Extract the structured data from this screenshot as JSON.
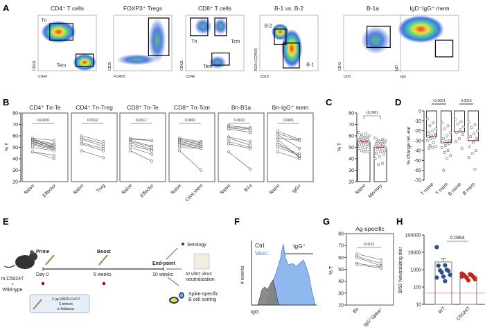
{
  "panels": {
    "A": "A",
    "B": "B",
    "C": "C",
    "D": "D",
    "E": "E",
    "F": "F",
    "G": "G",
    "H": "H"
  },
  "flow_plots": [
    {
      "title": "CD4⁺ T cells",
      "x": "CD44",
      "y": "CD62L",
      "gates": [
        "Tn",
        "Tem"
      ]
    },
    {
      "title": "FOXP3⁺ Tregs",
      "x": "FOXP3",
      "y": "CD25",
      "gates": []
    },
    {
      "title": "CD8⁺ T cells",
      "x": "CD44",
      "y": "CD62L",
      "gates": [
        "Tn",
        "Tcm",
        "Tem"
      ]
    },
    {
      "title": "B-1 vs. B-2",
      "x": "CD19",
      "y": "B220 (CD45R)",
      "gates": [
        "B-2",
        "B-1"
      ]
    },
    {
      "title": "B-1a",
      "x": "CD5",
      "y": "CD43",
      "gates": []
    },
    {
      "title": "IgD⁻IgG⁺ mem",
      "x": "IgG",
      "y": "IgD",
      "gates": []
    }
  ],
  "chart_data": [
    {
      "panel": "B",
      "type": "line",
      "ylabel": "% T",
      "ylim": [
        20,
        80
      ],
      "yticks": [
        20,
        30,
        40,
        50,
        60,
        70,
        80
      ],
      "subplots": [
        {
          "title": "CD4⁺ Tn-Te",
          "categories": [
            "Naive",
            "Effector"
          ],
          "p": "<0.0001",
          "pairs": [
            [
              58,
              56
            ],
            [
              57,
              53
            ],
            [
              57,
              50
            ],
            [
              56,
              52
            ],
            [
              55,
              51
            ],
            [
              55,
              49
            ],
            [
              54,
              50
            ],
            [
              53,
              49
            ],
            [
              52,
              48
            ],
            [
              50,
              47
            ],
            [
              46,
              43
            ],
            [
              46,
              40
            ]
          ]
        },
        {
          "title": "CD4⁺ Tn-Treg",
          "categories": [
            "Naive",
            "Treg"
          ],
          "p": "0.0312",
          "pairs": [
            [
              60,
              55
            ],
            [
              58,
              53
            ],
            [
              57,
              51
            ],
            [
              54,
              49
            ],
            [
              53,
              47
            ],
            [
              47,
              41
            ]
          ]
        },
        {
          "title": "CD8⁺ Tn-Te",
          "categories": [
            "Naive",
            "Effector"
          ],
          "p": "0.0012",
          "pairs": [
            [
              58,
              56
            ],
            [
              57,
              56
            ],
            [
              56,
              51
            ],
            [
              55,
              50
            ],
            [
              54,
              48
            ],
            [
              52,
              47
            ],
            [
              50,
              44
            ],
            [
              47,
              38
            ]
          ]
        },
        {
          "title": "CD8⁺ Tn-Tcm",
          "categories": [
            "Naive",
            "Cent mem"
          ],
          "p": "0.0001",
          "pairs": [
            [
              58,
              55
            ],
            [
              57,
              54
            ],
            [
              56,
              53
            ],
            [
              55,
              52
            ],
            [
              54,
              51
            ],
            [
              53,
              50
            ],
            [
              52,
              49
            ],
            [
              50,
              49
            ],
            [
              47,
              30
            ]
          ]
        },
        {
          "title": "Bn-B1a",
          "categories": [
            "Naive",
            "B1a"
          ],
          "p": "0.0010",
          "pairs": [
            [
              69,
              67
            ],
            [
              68,
              66
            ],
            [
              67,
              65
            ],
            [
              66,
              63
            ],
            [
              59,
              55
            ],
            [
              58,
              52
            ],
            [
              55,
              50
            ],
            [
              53,
              49
            ],
            [
              46,
              31
            ]
          ]
        },
        {
          "title": "Bn-IgG⁺ mem",
          "categories": [
            "Naive",
            "IgG+"
          ],
          "p": "0.0001",
          "pairs": [
            [
              64,
              57
            ],
            [
              62,
              56
            ],
            [
              61,
              49
            ],
            [
              58,
              56
            ],
            [
              57,
              41
            ],
            [
              54,
              42
            ],
            [
              52,
              44
            ],
            [
              50,
              43
            ],
            [
              46,
              40
            ]
          ]
        }
      ]
    },
    {
      "panel": "C",
      "type": "bar",
      "ylabel": "% T",
      "ylim": [
        20,
        80
      ],
      "yticks": [
        20,
        30,
        40,
        50,
        60,
        70,
        80
      ],
      "categories": [
        "Naive",
        "Memory"
      ],
      "means": [
        55,
        50
      ],
      "p": "<0.0001",
      "points": [
        [
          63,
          62,
          61,
          60,
          59,
          59,
          58,
          58,
          57,
          57,
          56,
          56,
          55,
          55,
          55,
          54,
          54,
          53,
          53,
          52,
          51,
          50,
          49,
          48,
          47,
          46,
          46
        ],
        [
          58,
          57,
          56,
          56,
          55,
          55,
          54,
          53,
          53,
          52,
          52,
          51,
          51,
          50,
          50,
          49,
          48,
          47,
          46,
          45,
          44,
          42,
          40,
          36,
          35
        ]
      ]
    },
    {
      "panel": "D",
      "type": "bar",
      "ylabel": "% change rel. ear",
      "ylim": [
        -70,
        0
      ],
      "yticks": [
        0,
        -10,
        -20,
        -30,
        -40,
        -50,
        -60,
        -70
      ],
      "categories": [
        "T naive",
        "T mem",
        "B naive",
        "B mem"
      ],
      "means": [
        -26,
        -32,
        -21,
        -30
      ],
      "p": [
        {
          "between": [
            "T naive",
            "T mem"
          ],
          "value": "<0.0001"
        },
        {
          "between": [
            "B naive",
            "B mem"
          ],
          "value": "0.0019"
        }
      ],
      "points": [
        [
          -8,
          -12,
          -15,
          -18,
          -20,
          -22,
          -24,
          -25,
          -26,
          -27,
          -28,
          -30,
          -32,
          -35,
          -36,
          -37,
          -38
        ],
        [
          -12,
          -15,
          -18,
          -22,
          -25,
          -28,
          -30,
          -31,
          -32,
          -33,
          -35,
          -37,
          -40,
          -42,
          -45,
          -48,
          -60
        ],
        [
          -9,
          -11,
          -13,
          -16,
          -19,
          -22,
          -24,
          -28,
          -31,
          -38
        ],
        [
          -11,
          -14,
          -17,
          -20,
          -23,
          -26,
          -28,
          -32,
          -36,
          -40,
          -43,
          -47,
          -59
        ]
      ]
    },
    {
      "panel": "F",
      "type": "area",
      "xlabel": "IgG",
      "ylabel": "# events",
      "legend": [
        "Ctrl",
        "Vacc."
      ],
      "gate_label": "IgG⁺",
      "colors": {
        "Ctrl": "#808080",
        "Vacc.": "#8fb8ee"
      }
    },
    {
      "panel": "G",
      "type": "line",
      "title": "Ag-specific",
      "ylabel": "% T",
      "ylim": [
        20,
        80
      ],
      "yticks": [
        20,
        30,
        40,
        50,
        60,
        70,
        80
      ],
      "categories": [
        "Bn",
        "IgG⁺Spike⁺"
      ],
      "p": "0.0312",
      "pairs": [
        [
          63,
          58
        ],
        [
          61,
          55
        ],
        [
          60,
          53
        ],
        [
          55,
          52
        ],
        [
          54,
          51
        ]
      ]
    },
    {
      "panel": "H",
      "type": "bar",
      "ylabel": "ID50 Neutralizing titer",
      "yscale": "log",
      "ylim": [
        10,
        100000
      ],
      "yticks": [
        "10",
        "100",
        "1000",
        "10000",
        "100000"
      ],
      "categories": [
        "WT",
        "C5024T"
      ],
      "means": [
        2800,
        420
      ],
      "sd_top": [
        4500,
        null
      ],
      "p": "0.0364",
      "limit_of_detection": 45,
      "colors": {
        "WT": "#2f4f8a",
        "C5024T": "#c0281e",
        "lod": "#f0a0a0"
      },
      "points": [
        [
          20000,
          1800,
          1700,
          1000,
          900,
          850,
          700,
          500,
          400,
          350,
          220
        ],
        [
          600,
          550,
          520,
          480,
          420,
          380,
          330,
          280,
          240,
          400
        ]
      ]
    }
  ],
  "schematic": {
    "mouse_label": [
      "m.C5024T",
      "+",
      "Wild-type"
    ],
    "prime": "Prime",
    "boost": "Boost",
    "endpoint": "End-point",
    "times": [
      "Day 0",
      "5 weeks",
      "10 weeks"
    ],
    "vaccine": [
      "2 µg SARS-CoV-2",
      "S trimers",
      "in Addavax"
    ],
    "outcomes": {
      "serology": "Serology",
      "neutralization_em": "In vitro",
      "neutralization": " virus",
      "neutralization2": "neutralization",
      "sorting1": "Spike-specific",
      "sorting2": "B cell sorting"
    }
  }
}
